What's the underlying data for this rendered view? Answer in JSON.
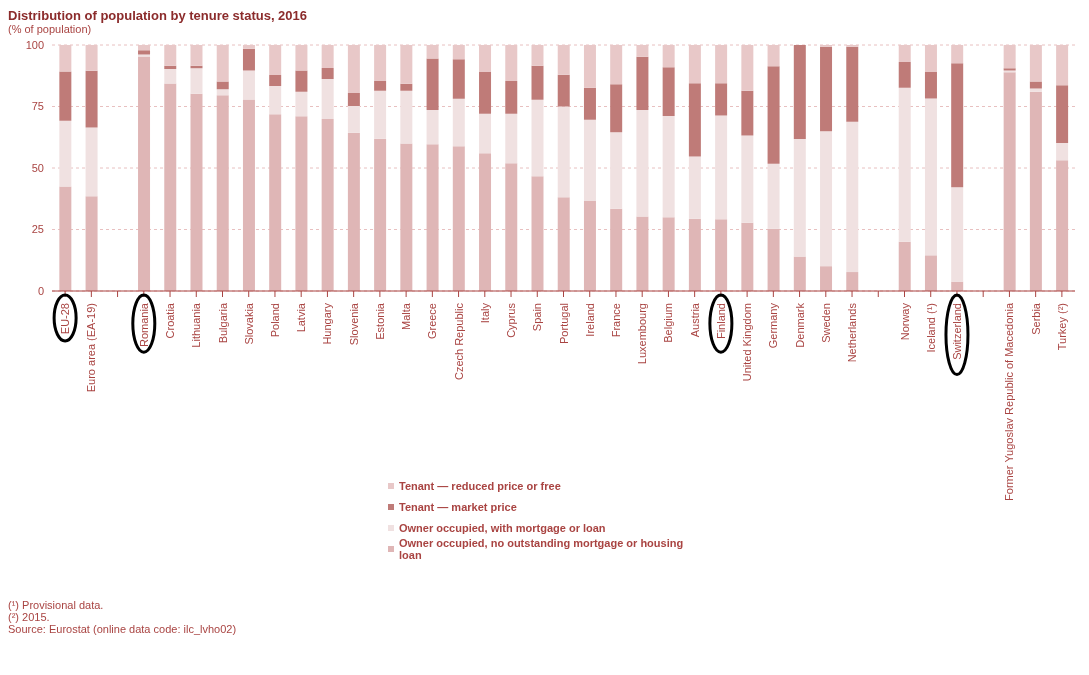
{
  "chart_data": {
    "type": "bar",
    "title": "Distribution of population by tenure status, 2016",
    "ylabel": "(% of population)",
    "categories": [
      "EU-28",
      "Euro area (EA-19)",
      null,
      "Romania",
      "Croatia",
      "Lithuania",
      "Bulgaria",
      "Slovakia",
      "Poland",
      "Latvia",
      "Hungary",
      "Slovenia",
      "Estonia",
      "Malta",
      "Greece",
      "Czech Republic",
      "Italy",
      "Cyprus",
      "Spain",
      "Portugal",
      "Ireland",
      "France",
      "Luxembourg",
      "Belgium",
      "Austria",
      "Finland",
      "United Kingdom",
      "Germany",
      "Denmark",
      "Sweden",
      "Netherlands",
      null,
      "Norway",
      "Iceland (¹)",
      "Switzerland",
      null,
      "Former Yugoslav Republic of Macedonia",
      "Serbia",
      "Turkey (²)"
    ],
    "stacked": true,
    "series": [
      {
        "name": "Owner occupied, no outstanding mortgage or housing loan",
        "color": "#dfb6b6",
        "values": [
          42.5,
          38.5,
          null,
          95.3,
          84.3,
          80.2,
          79.6,
          77.8,
          71.8,
          71.0,
          69.9,
          64.3,
          61.9,
          60.0,
          59.7,
          58.8,
          56.0,
          51.9,
          46.6,
          38.1,
          36.6,
          33.4,
          30.3,
          30.0,
          29.4,
          29.2,
          27.7,
          25.3,
          14.0,
          10.1,
          7.7,
          null,
          20.0,
          14.5,
          3.8,
          null,
          88.9,
          81.0,
          53.1
        ]
      },
      {
        "name": "Owner occupied, with mortgage or loan",
        "color": "#f0e1e1",
        "values": [
          26.7,
          28.0,
          null,
          0.8,
          5.9,
          10.3,
          2.4,
          11.8,
          11.5,
          10.0,
          16.3,
          10.9,
          19.5,
          21.4,
          13.9,
          19.3,
          16.1,
          20.2,
          31.1,
          36.9,
          33.0,
          31.1,
          43.3,
          41.1,
          25.3,
          42.1,
          35.5,
          26.4,
          47.8,
          54.8,
          61.1,
          null,
          62.6,
          63.8,
          38.4,
          null,
          0.7,
          1.3,
          7.1
        ]
      },
      {
        "name": "Tenant — market price",
        "color": "#bf7b78",
        "values": [
          20.0,
          23.0,
          null,
          1.8,
          1.4,
          1.1,
          3.2,
          8.9,
          4.5,
          8.6,
          4.5,
          5.3,
          4.0,
          2.8,
          20.9,
          16.1,
          16.9,
          13.3,
          13.9,
          12.9,
          13.0,
          19.5,
          21.6,
          19.9,
          29.8,
          13.2,
          18.2,
          39.7,
          38.2,
          34.4,
          30.5,
          null,
          10.5,
          10.7,
          50.4,
          null,
          0.9,
          2.9,
          23.4
        ]
      },
      {
        "name": "Tenant — reduced price or free",
        "color": "#e8c8c8",
        "values": [
          10.8,
          10.5,
          null,
          2.1,
          8.4,
          8.4,
          14.8,
          1.5,
          12.2,
          10.4,
          9.3,
          19.5,
          14.6,
          15.8,
          5.5,
          5.8,
          11.0,
          14.6,
          8.4,
          12.1,
          17.4,
          16.0,
          4.8,
          9.0,
          15.5,
          15.5,
          18.6,
          8.6,
          0.0,
          0.7,
          0.7,
          null,
          6.9,
          11.0,
          7.4,
          null,
          9.5,
          14.8,
          16.4
        ]
      }
    ],
    "ylim": [
      0,
      100
    ],
    "yticks": [
      0,
      25,
      50,
      75,
      100
    ],
    "grid": "y",
    "legend": "bottom",
    "annotations": [
      "(¹) Provisional data.",
      "(²) 2015.",
      "Source: Eurostat (online data code: ilc_lvho02)"
    ]
  }
}
